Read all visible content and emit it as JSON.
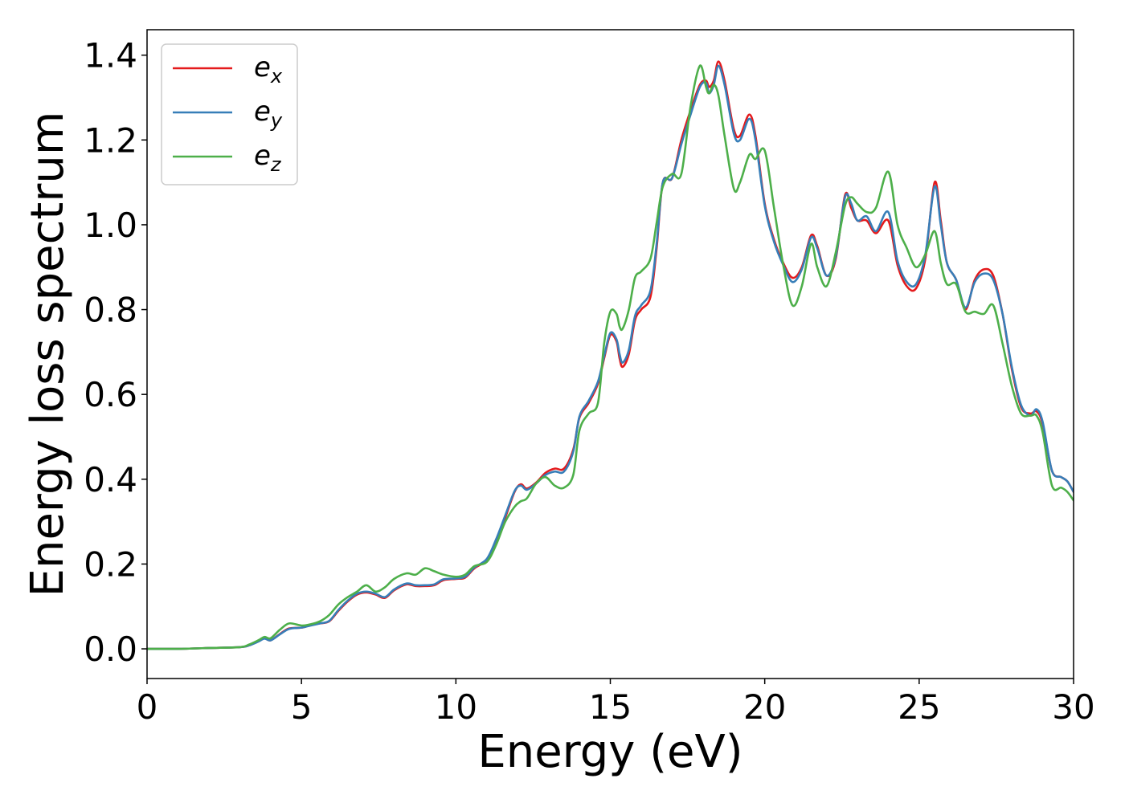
{
  "chart_data": {
    "type": "line",
    "title": "",
    "xlabel": "Energy (eV)",
    "ylabel": "Energy loss spectrum",
    "xlim": [
      0,
      30
    ],
    "ylim": [
      -0.07,
      1.46
    ],
    "xticks": [
      0,
      5,
      10,
      15,
      20,
      25,
      30
    ],
    "xtick_labels": [
      "0",
      "5",
      "10",
      "15",
      "20",
      "25",
      "30"
    ],
    "yticks": [
      0.0,
      0.2,
      0.4,
      0.6,
      0.8,
      1.0,
      1.2,
      1.4
    ],
    "ytick_labels": [
      "0.0",
      "0.2",
      "0.4",
      "0.6",
      "0.8",
      "1.0",
      "1.2",
      "1.4"
    ],
    "grid": false,
    "legend_position": "top-left",
    "series": [
      {
        "name": "e_x",
        "legend_main": "e",
        "legend_sub": "x",
        "color": "#e41a1c",
        "x": [
          0,
          1,
          2,
          3,
          3.3,
          3.6,
          3.8,
          4.0,
          4.3,
          4.6,
          5.0,
          5.3,
          5.6,
          5.9,
          6.2,
          6.5,
          6.8,
          7.1,
          7.4,
          7.7,
          8.0,
          8.4,
          8.7,
          9.0,
          9.3,
          9.6,
          10.0,
          10.3,
          10.6,
          11.0,
          11.3,
          11.6,
          11.9,
          12.1,
          12.3,
          12.6,
          12.9,
          13.2,
          13.5,
          13.8,
          14.0,
          14.3,
          14.6,
          14.8,
          15.0,
          15.2,
          15.3,
          15.4,
          15.6,
          15.8,
          16.0,
          16.3,
          16.5,
          16.7,
          17.0,
          17.3,
          17.6,
          17.9,
          18.1,
          18.2,
          18.35,
          18.5,
          18.7,
          19.0,
          19.2,
          19.5,
          19.7,
          20.0,
          20.3,
          20.6,
          20.9,
          21.2,
          21.5,
          21.7,
          22.0,
          22.3,
          22.6,
          22.8,
          23.0,
          23.3,
          23.6,
          24.0,
          24.3,
          24.6,
          24.9,
          25.2,
          25.5,
          25.7,
          25.9,
          26.2,
          26.5,
          26.8,
          27.1,
          27.4,
          27.7,
          28.0,
          28.3,
          28.6,
          28.8,
          29.0,
          29.3,
          29.6,
          29.8,
          30.0
        ],
        "y": [
          0.0,
          0.0,
          0.002,
          0.004,
          0.008,
          0.018,
          0.025,
          0.02,
          0.035,
          0.048,
          0.05,
          0.056,
          0.06,
          0.065,
          0.09,
          0.112,
          0.128,
          0.133,
          0.128,
          0.12,
          0.138,
          0.152,
          0.148,
          0.148,
          0.15,
          0.162,
          0.165,
          0.168,
          0.19,
          0.21,
          0.255,
          0.31,
          0.37,
          0.388,
          0.378,
          0.392,
          0.415,
          0.425,
          0.425,
          0.47,
          0.545,
          0.58,
          0.625,
          0.685,
          0.74,
          0.725,
          0.685,
          0.665,
          0.695,
          0.775,
          0.8,
          0.83,
          0.945,
          1.1,
          1.11,
          1.2,
          1.27,
          1.33,
          1.34,
          1.325,
          1.34,
          1.385,
          1.34,
          1.225,
          1.21,
          1.26,
          1.21,
          1.05,
          0.965,
          0.91,
          0.875,
          0.9,
          0.975,
          0.95,
          0.88,
          0.92,
          1.07,
          1.04,
          1.01,
          1.01,
          0.98,
          1.01,
          0.905,
          0.855,
          0.85,
          0.92,
          1.1,
          1.01,
          0.91,
          0.87,
          0.8,
          0.87,
          0.895,
          0.88,
          0.79,
          0.66,
          0.57,
          0.555,
          0.56,
          0.53,
          0.42,
          0.405,
          0.395,
          0.37
        ]
      },
      {
        "name": "e_y",
        "legend_main": "e",
        "legend_sub": "y",
        "color": "#377eb8",
        "x": [
          0,
          1,
          2,
          3,
          3.3,
          3.6,
          3.8,
          4.0,
          4.3,
          4.6,
          5.0,
          5.3,
          5.6,
          5.9,
          6.2,
          6.5,
          6.8,
          7.1,
          7.4,
          7.7,
          8.0,
          8.4,
          8.7,
          9.0,
          9.3,
          9.6,
          10.0,
          10.3,
          10.6,
          11.0,
          11.3,
          11.6,
          11.9,
          12.1,
          12.3,
          12.6,
          12.9,
          13.2,
          13.5,
          13.8,
          14.0,
          14.3,
          14.6,
          14.8,
          15.0,
          15.2,
          15.3,
          15.4,
          15.6,
          15.8,
          16.0,
          16.3,
          16.5,
          16.7,
          17.0,
          17.3,
          17.6,
          17.9,
          18.1,
          18.2,
          18.35,
          18.5,
          18.7,
          19.0,
          19.2,
          19.5,
          19.7,
          20.0,
          20.3,
          20.6,
          20.9,
          21.2,
          21.5,
          21.7,
          22.0,
          22.3,
          22.6,
          22.8,
          23.0,
          23.3,
          23.6,
          24.0,
          24.3,
          24.6,
          24.9,
          25.2,
          25.5,
          25.7,
          25.9,
          26.2,
          26.5,
          26.8,
          27.1,
          27.4,
          27.7,
          28.0,
          28.3,
          28.6,
          28.8,
          29.0,
          29.3,
          29.6,
          29.8,
          30.0
        ],
        "y": [
          0.0,
          0.0,
          0.002,
          0.004,
          0.008,
          0.017,
          0.024,
          0.02,
          0.034,
          0.047,
          0.05,
          0.055,
          0.06,
          0.066,
          0.092,
          0.114,
          0.13,
          0.135,
          0.13,
          0.122,
          0.14,
          0.154,
          0.15,
          0.15,
          0.152,
          0.164,
          0.166,
          0.17,
          0.192,
          0.212,
          0.258,
          0.315,
          0.372,
          0.385,
          0.375,
          0.39,
          0.41,
          0.418,
          0.418,
          0.465,
          0.548,
          0.585,
          0.63,
          0.69,
          0.745,
          0.73,
          0.695,
          0.675,
          0.705,
          0.785,
          0.81,
          0.845,
          0.955,
          1.1,
          1.11,
          1.19,
          1.26,
          1.325,
          1.335,
          1.31,
          1.33,
          1.375,
          1.33,
          1.215,
          1.2,
          1.25,
          1.2,
          1.045,
          0.96,
          0.905,
          0.865,
          0.895,
          0.97,
          0.945,
          0.88,
          0.925,
          1.065,
          1.05,
          1.01,
          1.02,
          0.985,
          1.03,
          0.915,
          0.865,
          0.86,
          0.93,
          1.09,
          1.0,
          0.91,
          0.87,
          0.805,
          0.865,
          0.885,
          0.87,
          0.79,
          0.665,
          0.575,
          0.55,
          0.565,
          0.535,
          0.42,
          0.405,
          0.395,
          0.37
        ]
      },
      {
        "name": "e_z",
        "legend_main": "e",
        "legend_sub": "z",
        "color": "#4daf4a",
        "x": [
          0,
          1,
          2,
          3,
          3.3,
          3.6,
          3.8,
          4.0,
          4.3,
          4.6,
          5.0,
          5.3,
          5.6,
          5.9,
          6.2,
          6.5,
          6.8,
          7.1,
          7.4,
          7.7,
          8.0,
          8.4,
          8.7,
          9.0,
          9.3,
          9.6,
          10.0,
          10.3,
          10.6,
          11.0,
          11.3,
          11.6,
          11.9,
          12.1,
          12.3,
          12.6,
          12.9,
          13.2,
          13.5,
          13.8,
          14.0,
          14.3,
          14.6,
          14.8,
          15.0,
          15.2,
          15.3,
          15.4,
          15.6,
          15.8,
          16.0,
          16.3,
          16.5,
          16.7,
          17.0,
          17.3,
          17.6,
          17.9,
          18.1,
          18.2,
          18.35,
          18.5,
          18.7,
          19.0,
          19.2,
          19.5,
          19.7,
          20.0,
          20.3,
          20.6,
          20.9,
          21.2,
          21.5,
          21.7,
          22.0,
          22.3,
          22.6,
          22.8,
          23.0,
          23.3,
          23.6,
          24.0,
          24.3,
          24.6,
          24.9,
          25.2,
          25.5,
          25.7,
          25.9,
          26.2,
          26.5,
          26.8,
          27.1,
          27.4,
          27.7,
          28.0,
          28.3,
          28.6,
          28.8,
          29.0,
          29.3,
          29.6,
          29.8,
          30.0
        ],
        "y": [
          0.0,
          0.0,
          0.002,
          0.004,
          0.01,
          0.02,
          0.028,
          0.025,
          0.045,
          0.06,
          0.055,
          0.058,
          0.065,
          0.08,
          0.105,
          0.122,
          0.135,
          0.15,
          0.135,
          0.145,
          0.165,
          0.178,
          0.175,
          0.19,
          0.183,
          0.175,
          0.17,
          0.175,
          0.195,
          0.205,
          0.245,
          0.3,
          0.335,
          0.348,
          0.355,
          0.39,
          0.405,
          0.385,
          0.38,
          0.41,
          0.515,
          0.555,
          0.58,
          0.72,
          0.795,
          0.79,
          0.76,
          0.755,
          0.8,
          0.875,
          0.89,
          0.92,
          1.005,
          1.09,
          1.12,
          1.12,
          1.28,
          1.375,
          1.325,
          1.31,
          1.33,
          1.305,
          1.21,
          1.085,
          1.1,
          1.165,
          1.155,
          1.175,
          1.04,
          0.905,
          0.81,
          0.855,
          0.955,
          0.9,
          0.855,
          0.935,
          1.045,
          1.065,
          1.05,
          1.03,
          1.04,
          1.125,
          1.0,
          0.945,
          0.9,
          0.93,
          0.985,
          0.91,
          0.86,
          0.86,
          0.795,
          0.795,
          0.79,
          0.81,
          0.72,
          0.62,
          0.555,
          0.55,
          0.55,
          0.51,
          0.385,
          0.38,
          0.37,
          0.35
        ]
      }
    ]
  }
}
